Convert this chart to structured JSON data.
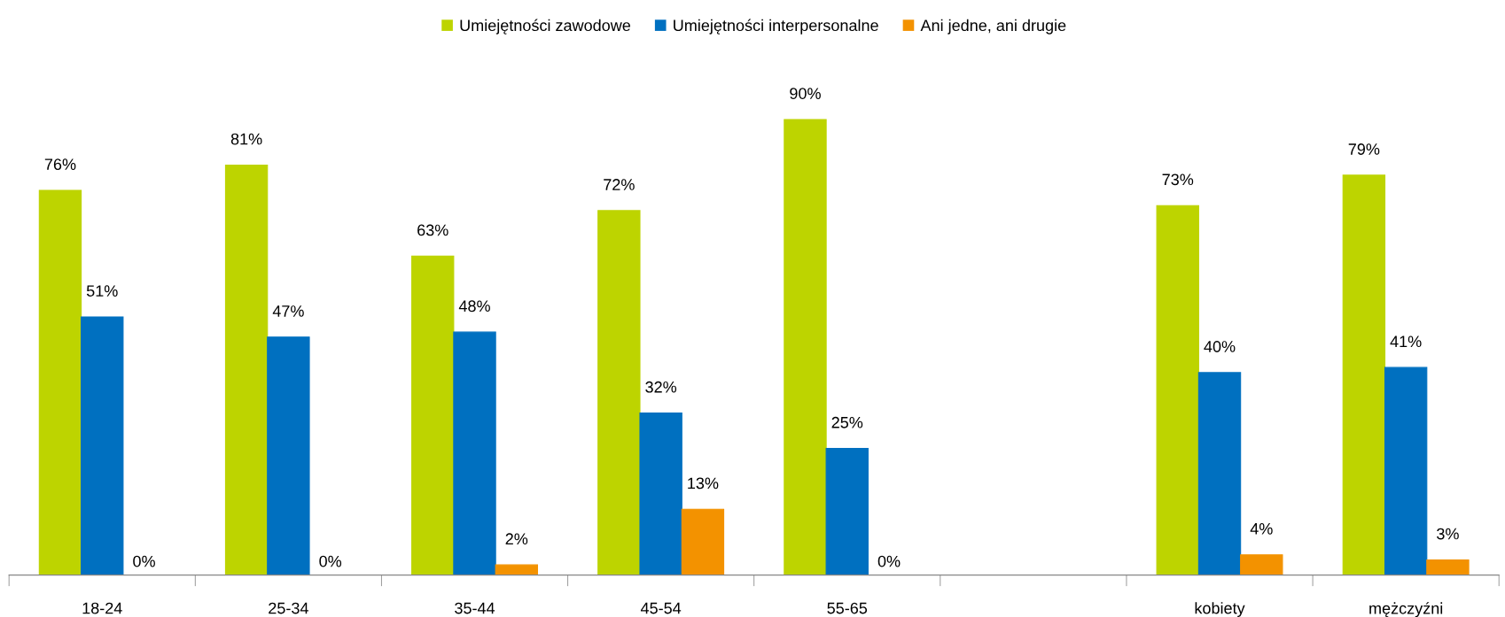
{
  "chart_data": {
    "type": "bar",
    "categories": [
      "18-24",
      "25-34",
      "35-44",
      "45-54",
      "55-65",
      null,
      "kobiety",
      "mężczyźni"
    ],
    "series": [
      {
        "name": "Umiejętności zawodowe",
        "color": "#bdd400",
        "values": [
          76,
          81,
          63,
          72,
          90,
          null,
          73,
          79
        ],
        "value_labels": [
          "76%",
          "81%",
          "63%",
          "72%",
          "90%",
          null,
          "73%",
          "79%"
        ]
      },
      {
        "name": "Umiejętności interpersonalne",
        "color": "#0070c0",
        "values": [
          51,
          47,
          48,
          32,
          25,
          null,
          40,
          41
        ],
        "value_labels": [
          "51%",
          "47%",
          "48%",
          "32%",
          "25%",
          null,
          "40%",
          "41%"
        ]
      },
      {
        "name": "Ani jedne, ani drugie",
        "color": "#f39200",
        "values": [
          0,
          0,
          2,
          13,
          0,
          null,
          4,
          3
        ],
        "value_labels": [
          "0%",
          "0%",
          "2%",
          "13%",
          "0%",
          null,
          "4%",
          "3%"
        ]
      }
    ],
    "grid": false,
    "legend": "top"
  }
}
